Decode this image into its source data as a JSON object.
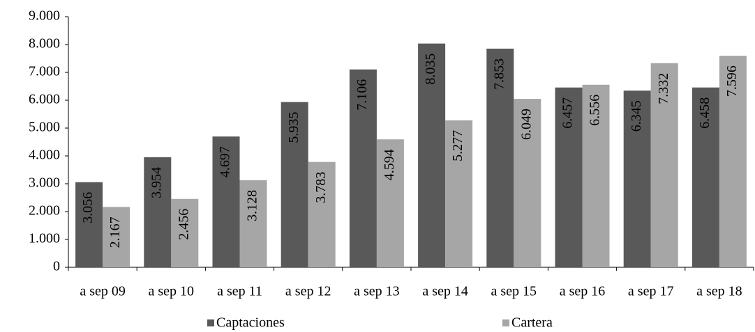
{
  "chart_data": {
    "type": "bar",
    "categories": [
      "a sep 09",
      "a sep 10",
      "a sep 11",
      "a sep 12",
      "a sep 13",
      "a sep 14",
      "a sep 15",
      "a sep 16",
      "a sep 17",
      "a sep 18"
    ],
    "series": [
      {
        "name": "Captaciones",
        "color": "#595959",
        "values": [
          3056,
          3954,
          4697,
          5935,
          7106,
          8035,
          7853,
          6457,
          6345,
          6458
        ],
        "value_labels": [
          "3.056",
          "3.954",
          "4.697",
          "5.935",
          "7.106",
          "8.035",
          "7.853",
          "6.457",
          "6.345",
          "6.458"
        ]
      },
      {
        "name": "Cartera",
        "color": "#a6a6a6",
        "values": [
          2167,
          2456,
          3128,
          3783,
          4594,
          5277,
          6049,
          6556,
          7332,
          7596
        ],
        "value_labels": [
          "2.167",
          "2.456",
          "3.128",
          "3.783",
          "4.594",
          "5.277",
          "6.049",
          "6.556",
          "7.332",
          "7.596"
        ]
      }
    ],
    "ylim": [
      0,
      9000
    ],
    "yticks": [
      0,
      {
        "value": 1000,
        "label": "1.000"
      },
      {
        "value": 2000,
        "label": "2.000"
      },
      {
        "value": 3000,
        "label": "3.000"
      },
      {
        "value": 4000,
        "label": "4.000"
      },
      {
        "value": 5000,
        "label": "5.000"
      },
      {
        "value": 6000,
        "label": "6.000"
      },
      {
        "value": 7000,
        "label": "7.000"
      },
      {
        "value": 8000,
        "label": "8.000"
      },
      {
        "value": 9000,
        "label": "9.000"
      }
    ],
    "legend": "bottom"
  }
}
